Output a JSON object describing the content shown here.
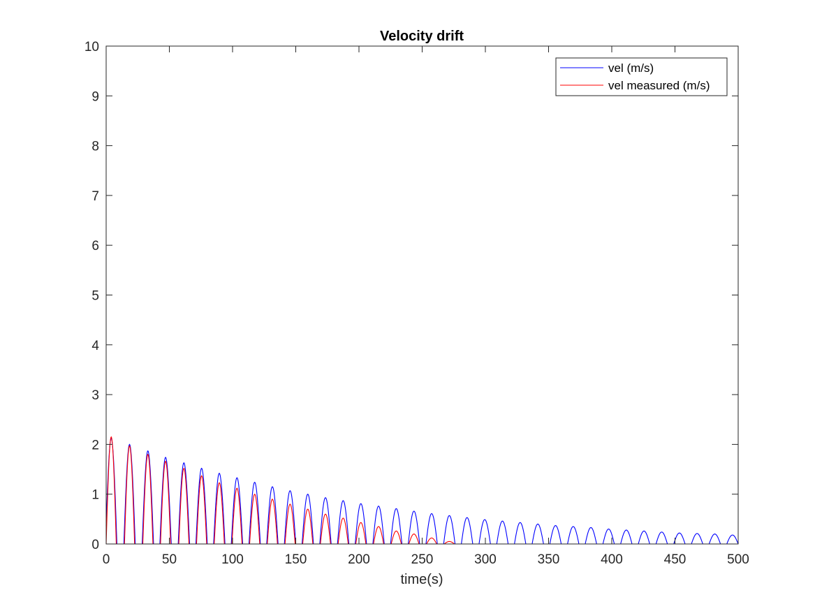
{
  "chart_data": {
    "type": "line",
    "title": "Velocity drift",
    "xlabel": "time(s)",
    "ylabel": "",
    "xlim": [
      0,
      500
    ],
    "ylim": [
      0,
      10
    ],
    "xticks": [
      0,
      50,
      100,
      150,
      200,
      250,
      300,
      350,
      400,
      450,
      500
    ],
    "yticks": [
      0,
      1,
      2,
      3,
      4,
      5,
      6,
      7,
      8,
      9,
      10
    ],
    "grid": false,
    "legend_position": "top-right",
    "series": [
      {
        "name": "vel (m/s)",
        "color": "#0000ff",
        "shape": "periodic half-sine arches returning to 0",
        "peaks_x": [
          4,
          18.5,
          33,
          47,
          61.5,
          75.5,
          89.5,
          103.5,
          117.5,
          131.5,
          145.5,
          159.5,
          173.5,
          187.5,
          201.5,
          215.5,
          229.5,
          243.5,
          257.5,
          271.5,
          285.5,
          299.5,
          313.5,
          327.5,
          341.5,
          355.5,
          369.5,
          383.5,
          397.5,
          411.5,
          425.5,
          439.5,
          453.5,
          467.5,
          481.5,
          495.5
        ],
        "peaks_y": [
          2.12,
          2.0,
          1.87,
          1.74,
          1.63,
          1.52,
          1.42,
          1.33,
          1.24,
          1.15,
          1.07,
          1.0,
          0.93,
          0.87,
          0.81,
          0.76,
          0.71,
          0.66,
          0.61,
          0.57,
          0.53,
          0.49,
          0.46,
          0.43,
          0.4,
          0.37,
          0.35,
          0.33,
          0.3,
          0.28,
          0.26,
          0.24,
          0.22,
          0.21,
          0.2,
          0.18
        ],
        "arch_width": 9
      },
      {
        "name": "vel measured (m/s)",
        "color": "#ff0000",
        "shape": "periodic half-sine arches decaying to 0",
        "peaks_x": [
          4,
          18.5,
          33,
          47,
          61.5,
          75.5,
          89.5,
          103.5,
          117.5,
          131.5,
          145.5,
          159.5,
          173.5,
          187.5,
          201.5,
          215.5,
          229.5,
          243.5,
          257.5,
          271.5
        ],
        "peaks_y": [
          2.15,
          1.97,
          1.8,
          1.66,
          1.52,
          1.37,
          1.23,
          1.12,
          1.0,
          0.9,
          0.8,
          0.7,
          0.6,
          0.52,
          0.43,
          0.35,
          0.26,
          0.2,
          0.12,
          0.05
        ],
        "arch_width": 8
      }
    ]
  }
}
